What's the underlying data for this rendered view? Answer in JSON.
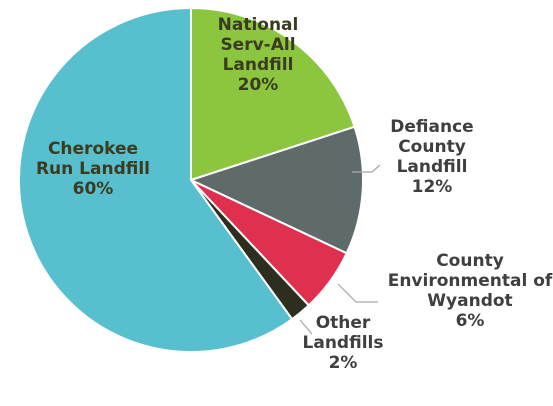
{
  "chart_data": {
    "type": "pie",
    "start_angle_deg": 0,
    "direction": "clockwise",
    "slices": [
      {
        "label_lines": [
          "National",
          "Serv-All",
          "Landfill"
        ],
        "value": 20,
        "value_label": "20%",
        "color": "#8cc63f"
      },
      {
        "label_lines": [
          "Defiance",
          "County",
          "Landfill"
        ],
        "value": 12,
        "value_label": "12%",
        "color": "#5f6b6b"
      },
      {
        "label_lines": [
          "County",
          "Environmental of",
          "Wyandot"
        ],
        "value": 6,
        "value_label": "6%",
        "color": "#e0304f"
      },
      {
        "label_lines": [
          "Other",
          "Landfills"
        ],
        "value": 2,
        "value_label": "2%",
        "color": "#2e2e1e"
      },
      {
        "label_lines": [
          "Cherokee",
          "Run Landfill"
        ],
        "value": 60,
        "value_label": "60%",
        "color": "#58bfcf"
      }
    ],
    "leader_lines": true,
    "legend": "none"
  }
}
